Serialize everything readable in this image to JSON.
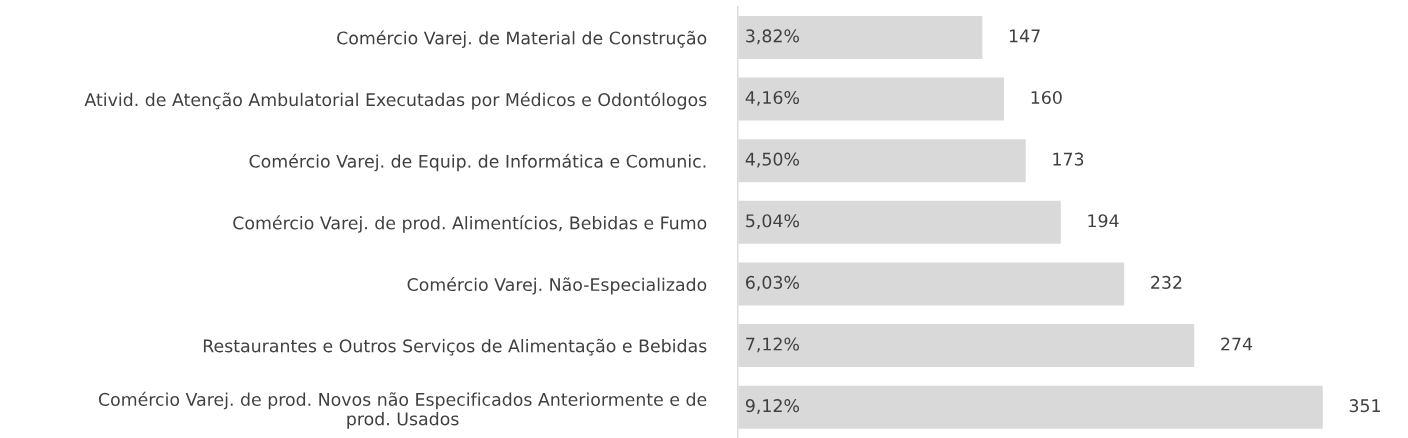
{
  "chart_data": {
    "type": "bar",
    "orientation": "horizontal",
    "categories": [
      "Comércio Varej. de Material de Construção",
      "Ativid. de Atenção Ambulatorial Executadas por Médicos e Odontólogos",
      "Comércio Varej. de Equip. de Informática e Comunic.",
      "Comércio Varej. de prod. Alimentícios, Bebidas e Fumo",
      "Comércio Varej. Não-Especializado",
      "Restaurantes e Outros Serviços de Alimentação e Bebidas",
      "Comércio Varej. de prod. Novos não Especificados Anteriormente e de\nprod. Usados"
    ],
    "values": [
      147,
      160,
      173,
      194,
      232,
      274,
      351
    ],
    "data_labels": true,
    "annotations": [
      "3,82%",
      "4,16%",
      "4,50%",
      "5,04%",
      "6,03%",
      "7,12%",
      "9,12%"
    ],
    "color": "#d9d9d9"
  }
}
